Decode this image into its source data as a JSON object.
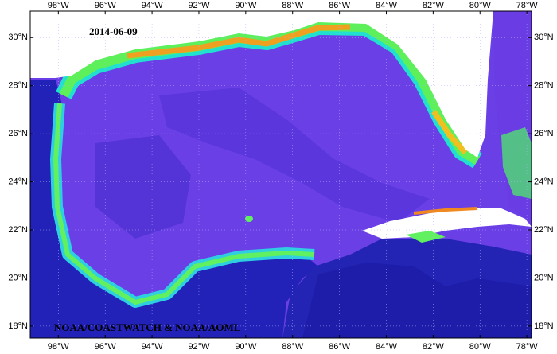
{
  "map": {
    "date": "2014-06-09",
    "credit": "NOAA/COASTWATCH & NOAA/AOML",
    "lon_range": [
      -99.2,
      -77.8
    ],
    "lat_range": [
      17.5,
      31.1
    ],
    "lon_ticks": [
      {
        "value": -98,
        "label": "98°W"
      },
      {
        "value": -96,
        "label": "96°W"
      },
      {
        "value": -94,
        "label": "94°W"
      },
      {
        "value": -92,
        "label": "92°W"
      },
      {
        "value": -90,
        "label": "90°W"
      },
      {
        "value": -88,
        "label": "88°W"
      },
      {
        "value": -86,
        "label": "86°W"
      },
      {
        "value": -84,
        "label": "84°W"
      },
      {
        "value": -82,
        "label": "82°W"
      },
      {
        "value": -80,
        "label": "80°W"
      },
      {
        "value": -78,
        "label": "78°W"
      }
    ],
    "lat_ticks": [
      {
        "value": 18,
        "label": "18°N"
      },
      {
        "value": 20,
        "label": "20°N"
      },
      {
        "value": 22,
        "label": "22°N"
      },
      {
        "value": 24,
        "label": "24°N"
      },
      {
        "value": 26,
        "label": "26°N"
      },
      {
        "value": 28,
        "label": "28°N"
      },
      {
        "value": 30,
        "label": "30°N"
      }
    ]
  }
}
